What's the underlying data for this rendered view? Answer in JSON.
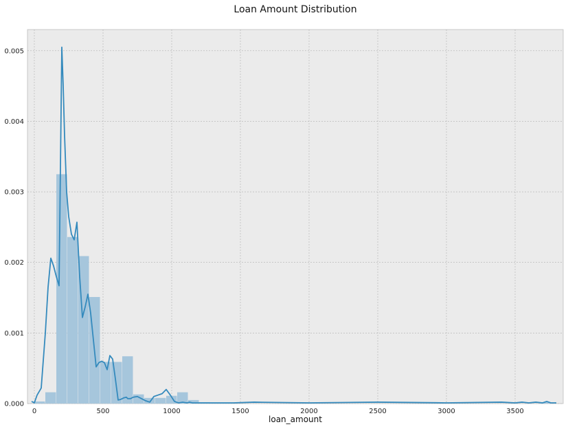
{
  "chart_data": {
    "type": "bar",
    "title": "Loan Amount Distribution",
    "xlabel": "loan_amount",
    "ylabel": "",
    "xlim": [
      -50,
      3850
    ],
    "ylim": [
      0,
      0.0053
    ],
    "xticks": [
      0,
      500,
      1000,
      1500,
      2000,
      2500,
      3000,
      3500
    ],
    "xtick_labels": [
      "0",
      "500",
      "1000",
      "1500",
      "2000",
      "2500",
      "3000",
      "3500"
    ],
    "yticks": [
      0,
      0.001,
      0.002,
      0.003,
      0.004,
      0.005
    ],
    "ytick_labels": [
      "0.000",
      "0.001",
      "0.002",
      "0.003",
      "0.004",
      "0.005"
    ],
    "grid": true,
    "colors": {
      "background": "#ebebeb",
      "grid": "#b0b0b0",
      "bars": "#a6c6dc",
      "line": "#348abd"
    },
    "bin_width": 80,
    "histogram": {
      "bin_starts": [
        0,
        80,
        160,
        240,
        320,
        400,
        480,
        560,
        640,
        720,
        800,
        880,
        960,
        1040,
        1120,
        1200,
        1280,
        1360,
        3680
      ],
      "density": [
        3e-05,
        0.00016,
        0.00325,
        0.00236,
        0.00209,
        0.00151,
        0.00059,
        0.00059,
        0.00067,
        0.00013,
        8e-05,
        8e-05,
        0.00011,
        0.00016,
        5e-05,
        2e-05,
        1e-05,
        5e-06,
        2e-05
      ]
    },
    "kde": {
      "x": [
        -20,
        0,
        20,
        50,
        80,
        100,
        120,
        140,
        160,
        180,
        200,
        210,
        220,
        235,
        250,
        270,
        290,
        310,
        330,
        350,
        370,
        390,
        410,
        430,
        450,
        470,
        490,
        510,
        530,
        550,
        570,
        590,
        610,
        630,
        650,
        670,
        680,
        700,
        720,
        750,
        780,
        810,
        840,
        870,
        900,
        930,
        960,
        990,
        1020,
        1050,
        1080,
        1110,
        1130,
        1150,
        1170,
        1190,
        1220,
        1280,
        1350,
        1450,
        1600,
        2000,
        2500,
        3000,
        3400,
        3500,
        3550,
        3600,
        3650,
        3700,
        3730,
        3760,
        3800
      ],
      "y": [
        3e-05,
        1e-05,
        0.00012,
        0.00022,
        0.001,
        0.00165,
        0.00206,
        0.00195,
        0.0018,
        0.00167,
        0.00505,
        0.0045,
        0.0038,
        0.003,
        0.00265,
        0.0024,
        0.00232,
        0.00257,
        0.0018,
        0.00122,
        0.00137,
        0.00155,
        0.00128,
        0.0009,
        0.00052,
        0.00058,
        0.0006,
        0.00058,
        0.00048,
        0.00068,
        0.00063,
        0.00035,
        5e-05,
        6e-05,
        8e-05,
        9e-05,
        7e-05,
        7e-05,
        9e-05,
        0.0001,
        7e-05,
        4e-05,
        2e-05,
        0.0001,
        0.00012,
        0.00014,
        0.0002,
        0.00012,
        3e-05,
        1e-05,
        2e-05,
        1e-05,
        2e-05,
        1e-05,
        1e-05,
        1e-05,
        1e-05,
        1e-05,
        1e-05,
        1e-05,
        2e-05,
        1e-05,
        2e-05,
        1e-05,
        2e-05,
        1e-05,
        2e-05,
        1e-05,
        2e-05,
        1e-05,
        3e-05,
        1e-05,
        1e-05
      ]
    }
  }
}
